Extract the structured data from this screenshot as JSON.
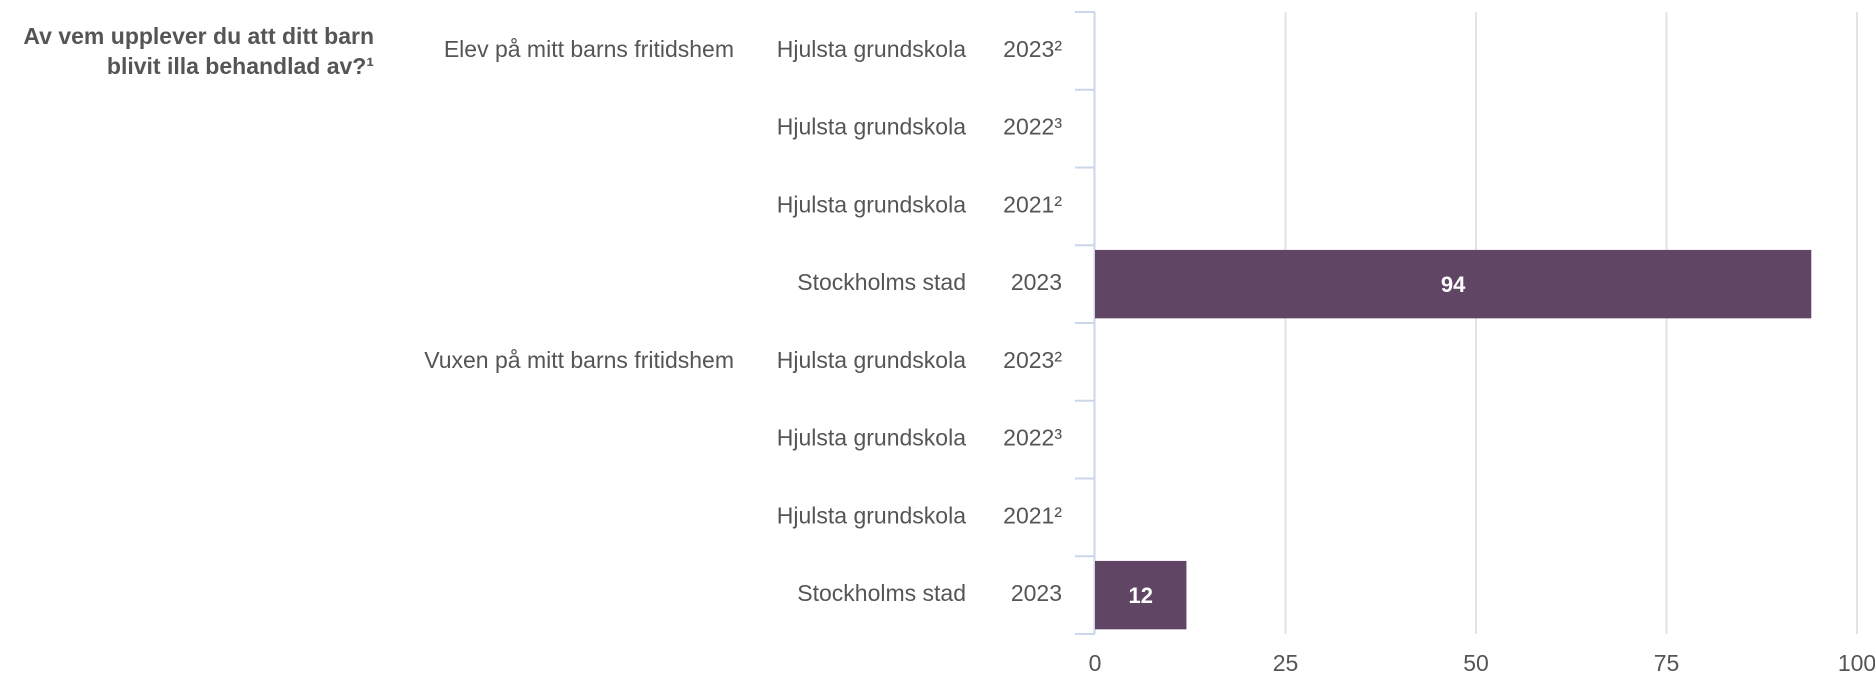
{
  "chart_data": {
    "type": "bar",
    "orientation": "horizontal",
    "title": [
      "Av vem upplever du att ditt barn",
      "blivit illa behandlad av?¹"
    ],
    "color": "#614564",
    "groups": [
      {
        "name": "Elev på mitt barns fritidshem",
        "units": [
          "Hjulsta grundskola",
          "Hjulsta grundskola",
          "Hjulsta grundskola",
          "Stockholms stad"
        ],
        "years": [
          "2023²",
          "2022³",
          "2021²",
          "2023"
        ],
        "values": [
          null,
          null,
          null,
          94
        ]
      },
      {
        "name": "Vuxen på mitt barns fritidshem",
        "units": [
          "Hjulsta grundskola",
          "Hjulsta grundskola",
          "Hjulsta grundskola",
          "Stockholms stad"
        ],
        "years": [
          "2023²",
          "2022³",
          "2021²",
          "2023"
        ],
        "values": [
          null,
          null,
          null,
          12
        ]
      }
    ],
    "xlim": [
      0,
      100
    ],
    "xticks": [
      0,
      25,
      50,
      75,
      100
    ],
    "grid": true
  }
}
